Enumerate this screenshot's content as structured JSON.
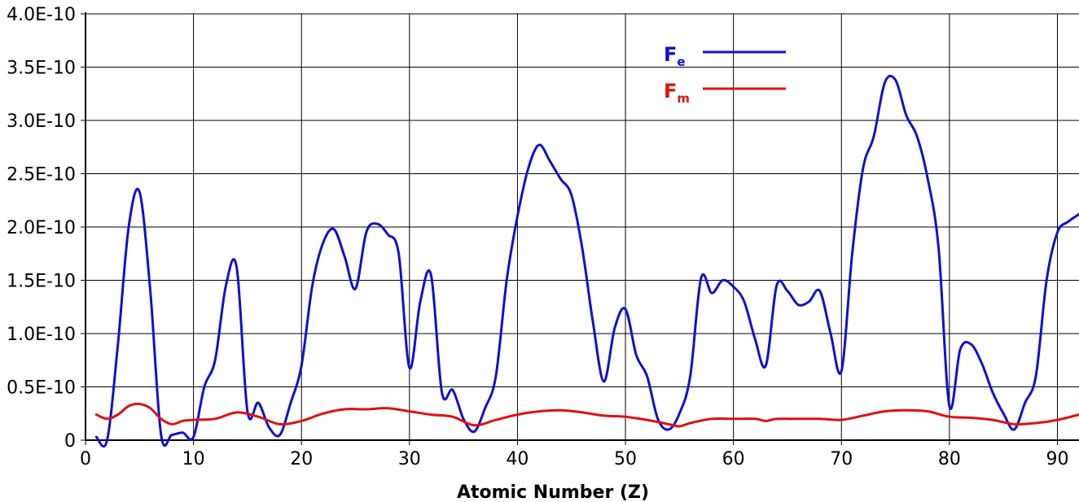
{
  "chart_data": {
    "type": "line",
    "xlabel": "Atomic Number (Z)",
    "ylabel": "",
    "xlim": [
      0,
      92
    ],
    "ylim": [
      0,
      4e-10
    ],
    "grid": true,
    "legend_position": "top-right",
    "x_ticks": [
      0,
      10,
      20,
      30,
      40,
      50,
      60,
      70,
      80,
      90
    ],
    "x_tick_labels": [
      "0",
      "10",
      "20",
      "30",
      "40",
      "50",
      "60",
      "70",
      "80",
      "90"
    ],
    "y_ticks": [
      0,
      5e-11,
      1e-10,
      1.5e-10,
      2e-10,
      2.5e-10,
      3e-10,
      3.5e-10,
      4e-10
    ],
    "y_tick_labels": [
      "0",
      "0.5E-10",
      "1.0E-10",
      "1.5E-10",
      "2.0E-10",
      "2.5E-10",
      "3.0E-10",
      "3.5E-10",
      "4.0E-10"
    ],
    "series": [
      {
        "name": "Fe",
        "legend_main": "F",
        "legend_sub": "e",
        "color": "#1010d0",
        "x": [
          1,
          2,
          3,
          4,
          5,
          6,
          7,
          8,
          9,
          10,
          11,
          12,
          13,
          14,
          15,
          16,
          17,
          18,
          19,
          20,
          21,
          22,
          23,
          24,
          25,
          26,
          27,
          28,
          29,
          30,
          31,
          32,
          33,
          34,
          35,
          36,
          37,
          38,
          39,
          40,
          41,
          42,
          43,
          44,
          45,
          46,
          47,
          48,
          49,
          50,
          51,
          52,
          53,
          54,
          55,
          56,
          57,
          58,
          59,
          60,
          61,
          62,
          63,
          64,
          65,
          66,
          67,
          68,
          69,
          70,
          71,
          72,
          73,
          74,
          75,
          76,
          77,
          78,
          79,
          80,
          81,
          82,
          83,
          84,
          85,
          86,
          87,
          88,
          89,
          90,
          91,
          92
        ],
        "y": [
          3e-12,
          0.0,
          9e-11,
          2e-10,
          2.33e-10,
          1.4e-10,
          5e-12,
          5e-12,
          7e-12,
          3e-12,
          5e-11,
          7.5e-11,
          1.45e-10,
          1.62e-10,
          2.7e-11,
          3.5e-11,
          1.2e-11,
          5e-12,
          3.5e-11,
          7e-11,
          1.45e-10,
          1.85e-10,
          1.98e-10,
          1.72e-10,
          1.42e-10,
          1.95e-10,
          2.03e-10,
          1.93e-10,
          1.75e-10,
          6.8e-11,
          1.3e-10,
          1.55e-10,
          4.5e-11,
          4.7e-11,
          2e-11,
          8e-12,
          3e-11,
          6e-11,
          1.5e-10,
          2.1e-10,
          2.55e-10,
          2.77e-10,
          2.62e-10,
          2.45e-10,
          2.3e-10,
          1.8e-10,
          1.1e-10,
          5.5e-11,
          1.05e-10,
          1.23e-10,
          8e-11,
          6e-11,
          2e-11,
          1e-11,
          2.5e-11,
          6e-11,
          1.52e-10,
          1.38e-10,
          1.5e-10,
          1.44e-10,
          1.3e-10,
          9.5e-11,
          7e-11,
          1.45e-10,
          1.4e-10,
          1.27e-10,
          1.3e-10,
          1.4e-10,
          1e-10,
          6.5e-11,
          1.75e-10,
          2.55e-10,
          2.85e-10,
          3.35e-10,
          3.38e-10,
          3.05e-10,
          2.85e-10,
          2.45e-10,
          1.8e-10,
          3.2e-11,
          8.5e-11,
          9e-11,
          7.2e-11,
          4.5e-11,
          2.5e-11,
          1e-11,
          3.5e-11,
          6e-11,
          1.5e-10,
          1.95e-10,
          2.05e-10,
          2.12e-10
        ]
      },
      {
        "name": "Fm",
        "legend_main": "F",
        "legend_sub": "m",
        "color": "#e01010",
        "x": [
          1,
          2,
          3,
          4,
          5,
          6,
          7,
          8,
          9,
          10,
          12,
          14,
          16,
          18,
          20,
          22,
          24,
          26,
          28,
          30,
          32,
          34,
          36,
          38,
          40,
          42,
          44,
          46,
          48,
          50,
          52,
          54,
          55,
          56,
          58,
          60,
          62,
          63,
          64,
          66,
          68,
          70,
          72,
          74,
          76,
          78,
          80,
          82,
          84,
          86,
          88,
          90,
          92
        ],
        "y": [
          2.4e-11,
          2e-11,
          2.4e-11,
          3.2e-11,
          3.4e-11,
          3e-11,
          2e-11,
          1.5e-11,
          1.8e-11,
          1.9e-11,
          2e-11,
          2.6e-11,
          2.2e-11,
          1.5e-11,
          1.8e-11,
          2.5e-11,
          2.9e-11,
          2.9e-11,
          3e-11,
          2.7e-11,
          2.4e-11,
          2.2e-11,
          1.4e-11,
          1.9e-11,
          2.4e-11,
          2.7e-11,
          2.8e-11,
          2.6e-11,
          2.3e-11,
          2.2e-11,
          1.9e-11,
          1.5e-11,
          1.3e-11,
          1.6e-11,
          2e-11,
          2e-11,
          2e-11,
          1.8e-11,
          2e-11,
          2e-11,
          2e-11,
          1.9e-11,
          2.3e-11,
          2.7e-11,
          2.8e-11,
          2.7e-11,
          2.2e-11,
          2.1e-11,
          1.9e-11,
          1.5e-11,
          1.6e-11,
          1.9e-11,
          2.4e-11
        ]
      }
    ]
  }
}
